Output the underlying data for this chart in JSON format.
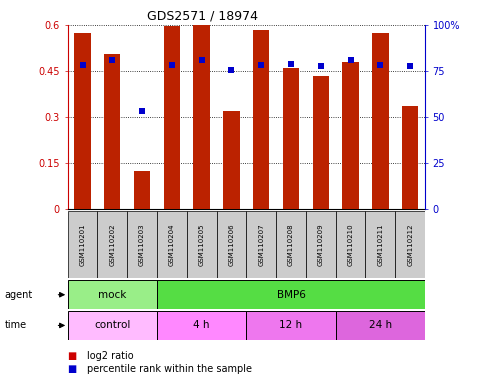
{
  "title": "GDS2571 / 18974",
  "samples": [
    "GSM110201",
    "GSM110202",
    "GSM110203",
    "GSM110204",
    "GSM110205",
    "GSM110206",
    "GSM110207",
    "GSM110208",
    "GSM110209",
    "GSM110210",
    "GSM110211",
    "GSM110212"
  ],
  "log2_ratio": [
    0.575,
    0.505,
    0.125,
    0.595,
    0.605,
    0.32,
    0.585,
    0.46,
    0.435,
    0.48,
    0.575,
    0.335
  ],
  "percentile_rank": [
    78.5,
    81.0,
    53.5,
    78.5,
    81.0,
    75.5,
    78.5,
    79.0,
    77.5,
    81.0,
    78.5,
    77.5
  ],
  "bar_color": "#bb2200",
  "dot_color": "#0000cc",
  "ylim_left": [
    0,
    0.6
  ],
  "ylim_right": [
    0,
    100
  ],
  "yticks_left": [
    0,
    0.15,
    0.3,
    0.45,
    0.6
  ],
  "yticks_right": [
    0,
    25,
    50,
    75,
    100
  ],
  "ytick_labels_left": [
    "0",
    "0.15",
    "0.3",
    "0.45",
    "0.6"
  ],
  "ytick_labels_right": [
    "0",
    "25",
    "50",
    "75",
    "100%"
  ],
  "agent_groups": [
    {
      "label": "mock",
      "start": 0,
      "end": 3,
      "color": "#99ee88"
    },
    {
      "label": "BMP6",
      "start": 3,
      "end": 12,
      "color": "#55dd44"
    }
  ],
  "time_groups": [
    {
      "label": "control",
      "start": 0,
      "end": 3,
      "color": "#ffbbff"
    },
    {
      "label": "4 h",
      "start": 3,
      "end": 6,
      "color": "#ff88ff"
    },
    {
      "label": "12 h",
      "start": 6,
      "end": 9,
      "color": "#ee77ee"
    },
    {
      "label": "24 h",
      "start": 9,
      "end": 12,
      "color": "#dd66dd"
    }
  ],
  "legend_red_label": "log2 ratio",
  "legend_blue_label": "percentile rank within the sample",
  "bar_color_legend": "#cc0000",
  "dot_color_legend": "#0000cc",
  "bar_width": 0.55,
  "background_color": "#ffffff",
  "sample_box_color": "#cccccc",
  "left_tick_color": "#cc0000",
  "right_tick_color": "#0000cc"
}
